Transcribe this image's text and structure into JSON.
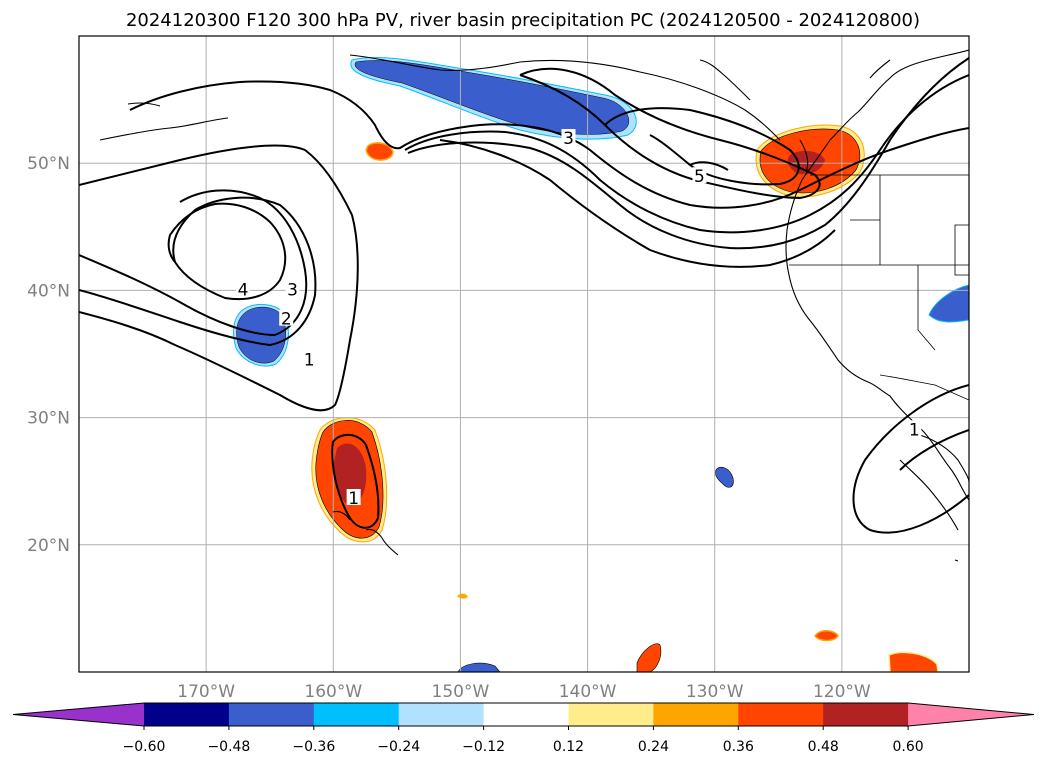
{
  "title": "2024120300 F120 300 hPa PV, river basin precipitation PC (2024120500 - 2024120800)",
  "map": {
    "extent": {
      "lon_min": -180,
      "lon_max": -110,
      "lat_min": 10,
      "lat_max": 60
    },
    "lon_ticks": [
      {
        "lon": -170,
        "label": "170°W"
      },
      {
        "lon": -160,
        "label": "160°W"
      },
      {
        "lon": -150,
        "label": "150°W"
      },
      {
        "lon": -140,
        "label": "140°W"
      },
      {
        "lon": -130,
        "label": "130°W"
      },
      {
        "lon": -120,
        "label": "120°W"
      }
    ],
    "lat_ticks": [
      {
        "lat": 50,
        "label": "50°N"
      },
      {
        "lat": 40,
        "label": "40°N"
      },
      {
        "lat": 30,
        "label": "30°N"
      },
      {
        "lat": 20,
        "label": "20°N"
      }
    ],
    "pv_contour_labels": [
      {
        "text": "1",
        "lon": -161.9,
        "lat": 34.5
      },
      {
        "text": "2",
        "lon": -163.7,
        "lat": 37.7
      },
      {
        "text": "3",
        "lon": -163.2,
        "lat": 40.0
      },
      {
        "text": "4",
        "lon": -167.1,
        "lat": 40.0
      },
      {
        "text": "3",
        "lon": -141.5,
        "lat": 51.9
      },
      {
        "text": "5",
        "lon": -131.2,
        "lat": 48.9
      },
      {
        "text": "1",
        "lon": -158.4,
        "lat": 23.6
      },
      {
        "text": "1",
        "lon": -114.3,
        "lat": 29.0
      }
    ]
  },
  "colorbar": {
    "colors": [
      "#9932cc",
      "#00008b",
      "#3a5fcd",
      "#00bfff",
      "#b0e2ff",
      "#ffffff",
      "#ffec8b",
      "#ffa500",
      "#ff4500",
      "#b22222",
      "#ff82ab"
    ],
    "tick_labels": [
      "−0.60",
      "−0.48",
      "−0.36",
      "−0.24",
      "−0.12",
      "0.12",
      "0.24",
      "0.36",
      "0.48",
      "0.60"
    ]
  }
}
